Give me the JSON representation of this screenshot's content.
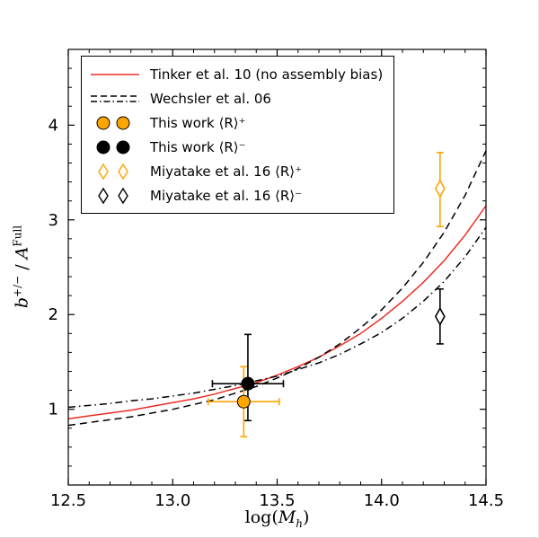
{
  "figure": {
    "background": "#ffffff"
  },
  "axes": {
    "xlabel_text": "log(M_h)",
    "ylabel_text": "b^{+/-} / A^{Full}",
    "xlabel_parts": [
      {
        "t": "log("
      },
      {
        "t": "M",
        "italic": true
      },
      {
        "t": "h",
        "sub": true,
        "italic": true
      },
      {
        "t": ")"
      }
    ],
    "ylabel_parts": [
      {
        "t": "b",
        "italic": true
      },
      {
        "t": "+/−",
        "sup": true
      },
      {
        "t": " / "
      },
      {
        "t": "A",
        "italic": true
      },
      {
        "t": "Full",
        "sup": true
      }
    ],
    "xticks": {
      "values": [
        12.5,
        13.0,
        13.5,
        14.0,
        14.5
      ],
      "labels": [
        "12.5",
        "13.0",
        "13.5",
        "14.0",
        "14.5"
      ]
    },
    "yticks": {
      "values": [
        1,
        2,
        3,
        4
      ],
      "labels": [
        "1",
        "2",
        "3",
        "4"
      ]
    }
  },
  "legend": {
    "position": "upper left",
    "items": [
      {
        "label": "Tinker et al. 10 (no assembly bias)",
        "marker": "solid-line",
        "color": "#ee2d24"
      },
      {
        "label": "Wechsler et al. 06",
        "marker": "dashed-dashdot-lines",
        "color": "#000000"
      },
      {
        "label": "This work ⟨R⟩⁺",
        "marker": "two-filled-circles",
        "color": "#FFA500",
        "edge": "#000000"
      },
      {
        "label": "This work ⟨R⟩⁻",
        "marker": "two-filled-circles",
        "color": "#000000",
        "edge": "#000000"
      },
      {
        "label": "Miyatake et al. 16 ⟨R⟩⁺",
        "marker": "two-open-diamonds",
        "color": "#FFA500"
      },
      {
        "label": "Miyatake et al. 16 ⟨R⟩⁻",
        "marker": "two-open-diamonds",
        "color": "#000000"
      }
    ]
  },
  "chart_data": {
    "type": "line",
    "title": "",
    "xlabel": "log(M_h)",
    "ylabel": "b^{+/-} / A^{Full}",
    "xlim": [
      12.5,
      14.5
    ],
    "ylim": [
      0.2,
      4.8
    ],
    "grid": false,
    "legend_position": "upper left",
    "x": [
      12.5,
      12.6,
      12.7,
      12.8,
      12.9,
      13.0,
      13.1,
      13.2,
      13.3,
      13.4,
      13.5,
      13.6,
      13.7,
      13.8,
      13.9,
      14.0,
      14.1,
      14.2,
      14.3,
      14.4,
      14.5
    ],
    "series": [
      {
        "name": "Tinker et al. 10 (no assembly bias)",
        "style": "solid",
        "color": "#ee2d24",
        "values": [
          0.9,
          0.93,
          0.96,
          0.99,
          1.03,
          1.07,
          1.11,
          1.16,
          1.22,
          1.28,
          1.36,
          1.45,
          1.55,
          1.67,
          1.8,
          1.96,
          2.14,
          2.34,
          2.57,
          2.84,
          3.15
        ]
      },
      {
        "name": "Wechsler et al. 06 (b+)",
        "style": "dashed",
        "dash": "8,5",
        "color": "#000000",
        "values": [
          0.83,
          0.86,
          0.89,
          0.92,
          0.96,
          1.0,
          1.05,
          1.1,
          1.17,
          1.24,
          1.33,
          1.43,
          1.55,
          1.69,
          1.86,
          2.05,
          2.28,
          2.55,
          2.87,
          3.26,
          3.73
        ]
      },
      {
        "name": "Wechsler et al. 06 (b-)",
        "style": "dashdot",
        "dash": "8,4,1.5,4",
        "color": "#000000",
        "values": [
          1.02,
          1.04,
          1.06,
          1.09,
          1.11,
          1.14,
          1.17,
          1.21,
          1.25,
          1.3,
          1.35,
          1.42,
          1.49,
          1.58,
          1.69,
          1.81,
          1.96,
          2.14,
          2.35,
          2.61,
          2.92
        ]
      }
    ],
    "points": [
      {
        "name": "this-work-r-plus",
        "x": 13.34,
        "y": 1.08,
        "xerr": 0.17,
        "yerr_low": 0.37,
        "yerr_high": 0.37,
        "marker": "circle",
        "color": "#FFA500",
        "edge": "#000000"
      },
      {
        "name": "this-work-r-minus",
        "x": 13.36,
        "y": 1.27,
        "xerr": 0.17,
        "yerr_low": 0.39,
        "yerr_high": 0.52,
        "marker": "circle",
        "color": "#000000",
        "edge": "#000000"
      },
      {
        "name": "miyatake-r-plus",
        "x": 14.28,
        "y": 3.33,
        "xerr": 0,
        "yerr_low": 0.4,
        "yerr_high": 0.38,
        "marker": "diamond",
        "color": "#FFA500",
        "edge": "#FFA500"
      },
      {
        "name": "miyatake-r-minus",
        "x": 14.28,
        "y": 1.98,
        "xerr": 0,
        "yerr_low": 0.29,
        "yerr_high": 0.29,
        "marker": "diamond",
        "color": "#000000",
        "edge": "#000000"
      }
    ]
  }
}
